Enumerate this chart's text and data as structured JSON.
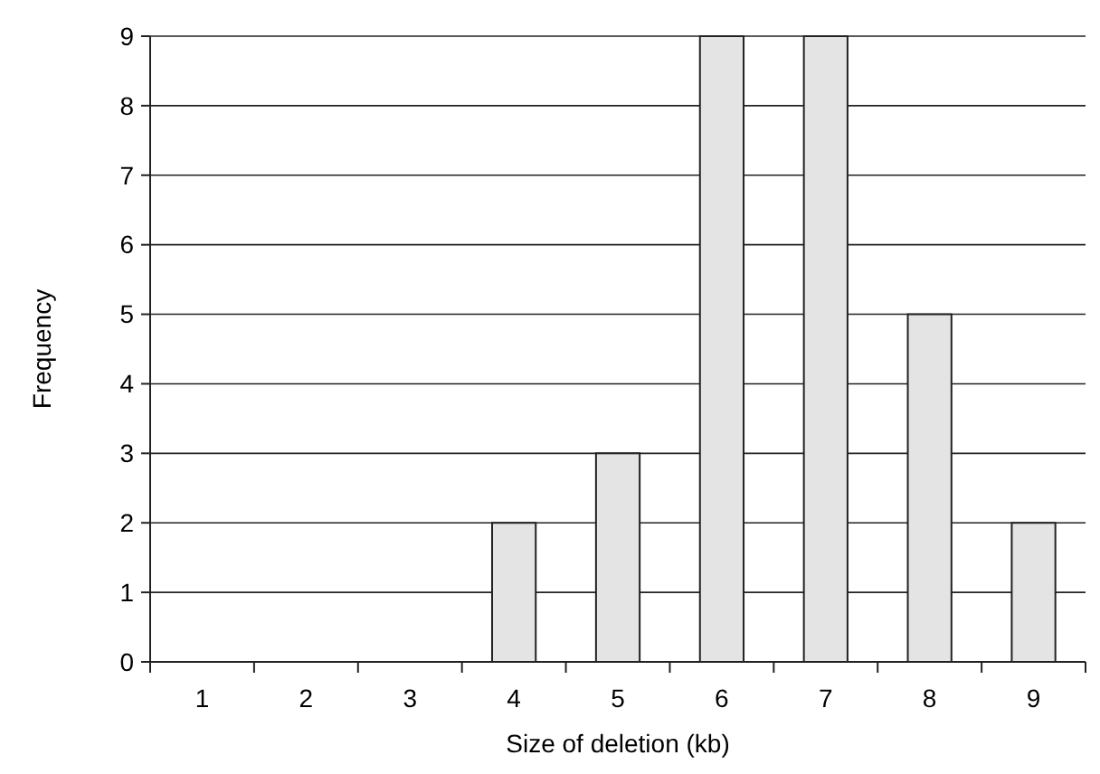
{
  "chart_data": {
    "type": "bar",
    "xlabel": "Size of deletion (kb)",
    "ylabel": "Frequency",
    "categories": [
      "1",
      "2",
      "3",
      "4",
      "5",
      "6",
      "7",
      "8",
      "9"
    ],
    "values": [
      0,
      0,
      0,
      2,
      3,
      9,
      9,
      5,
      2
    ],
    "color": "#e4e4e4",
    "ylim": [
      0,
      9
    ],
    "yticks": [
      0,
      1,
      2,
      3,
      4,
      5,
      6,
      7,
      8,
      9
    ],
    "grid": "y"
  }
}
